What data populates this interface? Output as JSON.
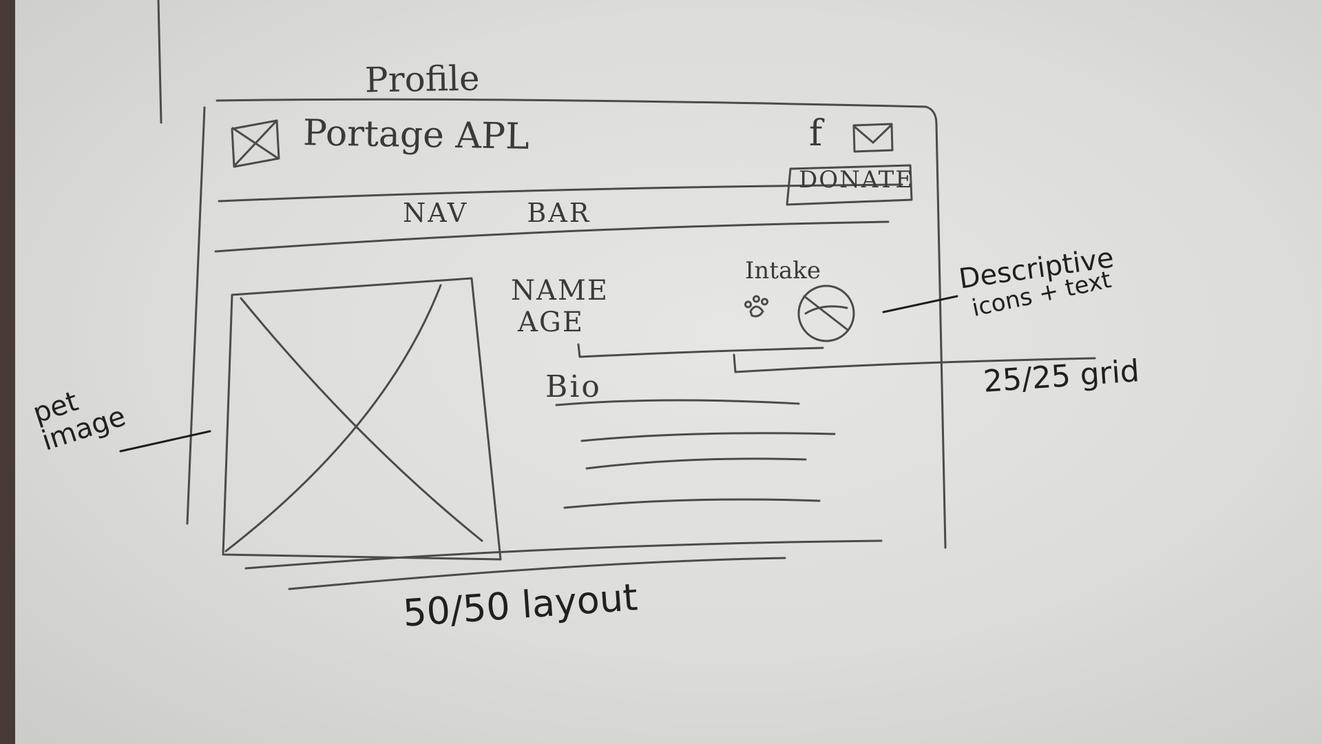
{
  "page_heading": "Profile",
  "header": {
    "brand": "Portage APL",
    "facebook_glyph": "f",
    "donate_label": "DONATE"
  },
  "nav": {
    "label": "NAV BAR"
  },
  "profile": {
    "name_label": "NAME",
    "age_label": "AGE",
    "intake_label": "Intake",
    "bio_label": "Bio"
  },
  "annotations": {
    "pet_image": "pet image",
    "descriptive_line1": "Descriptive",
    "descriptive_line2": "icons + text",
    "grid": "25/25 grid",
    "layout": "50/50 layout"
  },
  "icons": [
    "logo-placeholder-icon",
    "facebook-icon",
    "mail-icon",
    "paw-icon",
    "no-dog-icon",
    "image-placeholder-icon"
  ],
  "colors": {
    "pencil": "#4a4a4a",
    "ink": "#1e1e1e",
    "paper": "#dcdcd9"
  }
}
